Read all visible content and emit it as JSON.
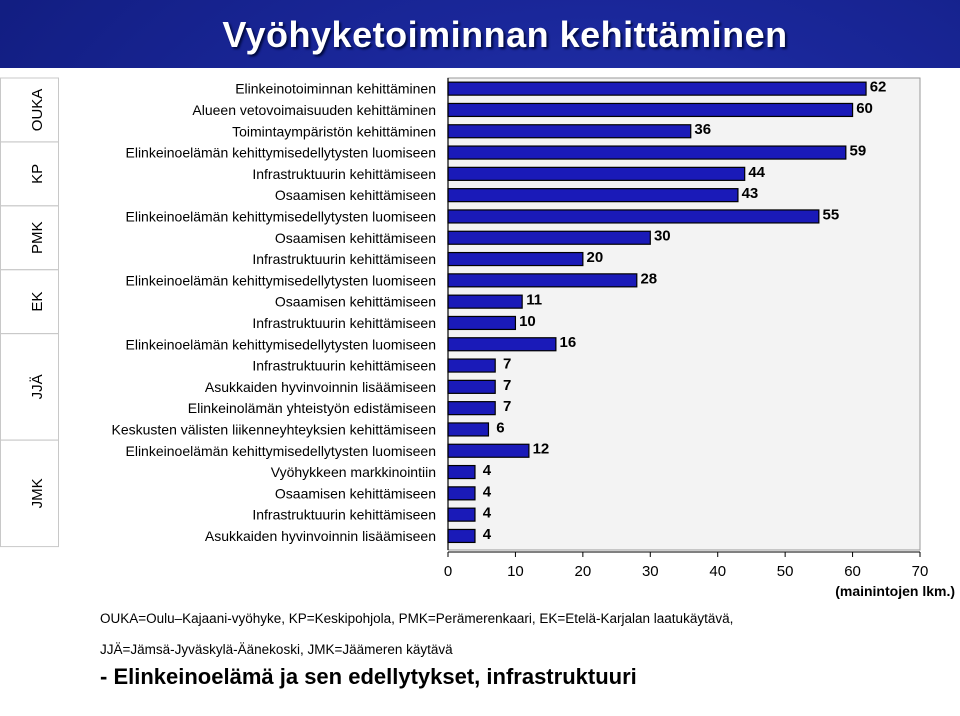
{
  "title": "Vyöhyketoiminnan kehittäminen",
  "legend_lines": [
    "OUKA=Oulu–Kajaani-vyöhyke, KP=Keskipohjola, PMK=Perämerenkaari, EK=Etelä-Karjalan laatukäytävä,",
    "JJÄ=Jämsä-Jyväskylä-Äänekoski,  JMK=Jäämeren käytävä"
  ],
  "summary": "- Elinkeinoelämä ja sen edellytykset, infrastruktuuri",
  "colors": {
    "bar_fill": "#1a1ab8",
    "bar_stroke": "#000000",
    "header_blue": "#1a279a",
    "panel": "#ffffff",
    "plot_bg": "#f3f3f3"
  },
  "chart_data": {
    "type": "bar",
    "orientation": "horizontal",
    "xlabel": "(mainintojen lkm.)",
    "xlim": [
      0,
      70
    ],
    "xticks": [
      0,
      10,
      20,
      30,
      40,
      50,
      60,
      70
    ],
    "grid": false,
    "categories": [
      "Elinkeinotoiminnan kehittäminen",
      "Alueen vetovoimaisuuden kehittäminen",
      "Toimintaympäristön kehittäminen",
      "Elinkeinoelämän kehittymisedellytysten luomiseen",
      "Infrastruktuurin kehittämiseen",
      "Osaamisen kehittämiseen",
      "Elinkeinoelämän kehittymisedellytysten luomiseen",
      "Osaamisen kehittämiseen",
      "Infrastruktuurin kehittämiseen",
      "Elinkeinoelämän kehittymisedellytysten luomiseen",
      "Osaamisen kehittämiseen",
      "Infrastruktuurin kehittämiseen",
      "Elinkeinoelämän kehittymisedellytysten luomiseen",
      "Infrastruktuurin kehittämiseen",
      "Asukkaiden hyvinvoinnin lisäämiseen",
      "Elinkeinolämän yhteistyön edistämiseen",
      "Keskusten välisten liikenneyhteyksien kehittämiseen",
      "Elinkeinoelämän kehittymisedellytysten luomiseen",
      "Vyöhykkeen markkinointiin",
      "Osaamisen kehittämiseen",
      "Infrastruktuurin kehittämiseen",
      "Asukkaiden hyvinvoinnin lisäämiseen"
    ],
    "values": [
      62,
      60,
      36,
      59,
      44,
      43,
      55,
      30,
      20,
      28,
      11,
      10,
      16,
      7,
      7,
      7,
      6,
      12,
      4,
      4,
      4,
      4
    ],
    "value_labels": [
      "62",
      "60",
      "36",
      "59",
      "44",
      "43",
      "55",
      "30",
      "20",
      "28",
      "11",
      "10",
      "16",
      "7",
      "7",
      "7",
      "6",
      "12",
      "4",
      "4",
      "4",
      "4"
    ],
    "groups": [
      {
        "name": "OUKA",
        "start": 0,
        "count": 3
      },
      {
        "name": "KP",
        "start": 3,
        "count": 3
      },
      {
        "name": "PMK",
        "start": 6,
        "count": 3
      },
      {
        "name": "EK",
        "start": 9,
        "count": 3
      },
      {
        "name": "JJÄ",
        "start": 12,
        "count": 5
      },
      {
        "name": "JMK",
        "start": 17,
        "count": 5
      }
    ]
  }
}
